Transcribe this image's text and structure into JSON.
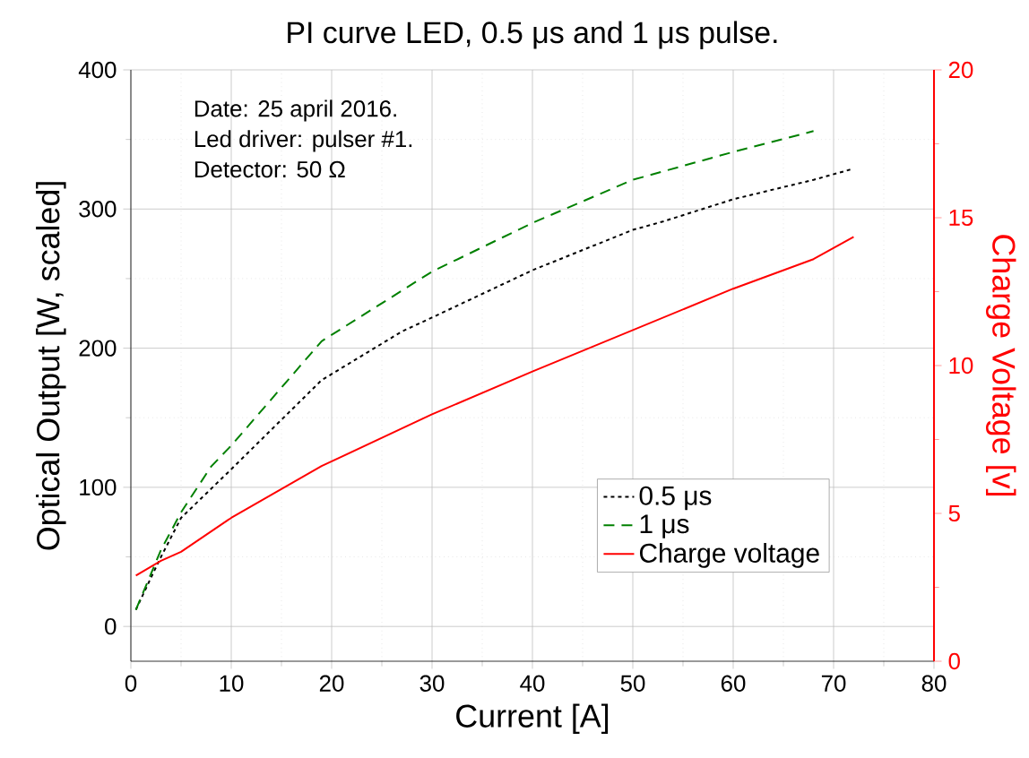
{
  "chart_data": {
    "type": "line",
    "title": "PI curve LED, 0.5 μs and 1 μs pulse.",
    "xlabel": "Current [A]",
    "ylabel": "Optical Output [W, scaled]",
    "y2label": "Charge Voltage [v]",
    "xlim": [
      0,
      80
    ],
    "xticks": [
      0,
      10,
      20,
      30,
      40,
      50,
      60,
      70,
      80
    ],
    "ylim": [
      -25,
      400
    ],
    "yticks": [
      0,
      100,
      200,
      300,
      400
    ],
    "y2lim": [
      0,
      20
    ],
    "y2ticks": [
      0,
      5,
      10,
      15,
      20
    ],
    "grid": true,
    "legend": "bottom right",
    "marker": "none",
    "annotations": [
      "Date: 25 april 2016.",
      "Led driver: pulser #1.",
      "Detector: 50 Ω"
    ],
    "series": [
      {
        "name": "0.5 μs",
        "color": "#000000",
        "line_style": "dotted",
        "x": [
          0.5,
          2,
          3,
          5,
          10,
          19,
          27,
          30,
          40,
          50,
          53,
          60,
          68,
          72
        ],
        "values": [
          12,
          35,
          50,
          78,
          113,
          177,
          212,
          222,
          256,
          285,
          291,
          307,
          321,
          329
        ]
      },
      {
        "name": "1 μs",
        "color": "#008000",
        "line_style": "dashed",
        "x": [
          0.5,
          3,
          5,
          8,
          10,
          19,
          30,
          40,
          50,
          60,
          68
        ],
        "values": [
          12,
          55,
          82,
          115,
          130,
          205,
          255,
          290,
          321,
          341,
          356
        ]
      },
      {
        "name": "Charge voltage",
        "color": "#ff0000",
        "line_style": "solid",
        "axis": "y2",
        "x": [
          0.5,
          3,
          5,
          10,
          19,
          30,
          40,
          50,
          60,
          68,
          72
        ],
        "values": [
          2.9,
          3.4,
          3.7,
          4.85,
          6.6,
          8.35,
          9.8,
          11.2,
          12.6,
          13.6,
          14.35
        ]
      }
    ]
  }
}
